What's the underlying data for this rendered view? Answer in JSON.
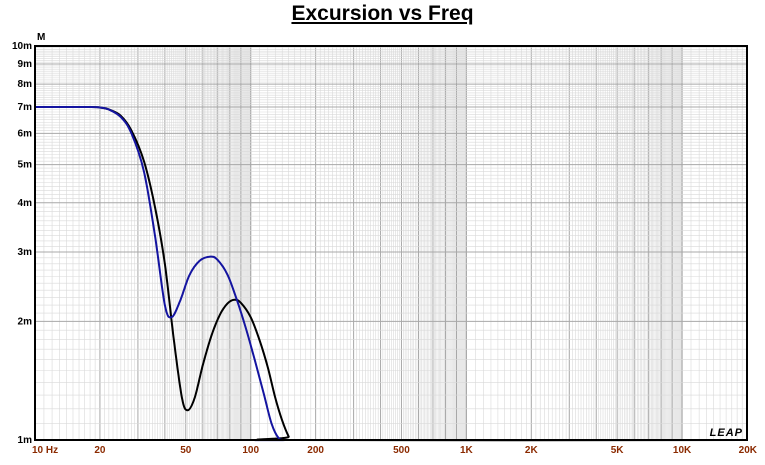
{
  "chart_data": {
    "type": "line",
    "title": "Excursion vs Freq",
    "y_unit": "M",
    "brand": "LEAP",
    "x_scale": "log",
    "y_scale": "log",
    "xlim": [
      10,
      20000
    ],
    "ylim": [
      0.001,
      0.01
    ],
    "grid": true,
    "x_ticks": [
      {
        "value": 10,
        "label": "10  Hz"
      },
      {
        "value": 20,
        "label": "20"
      },
      {
        "value": 50,
        "label": "50"
      },
      {
        "value": 100,
        "label": "100"
      },
      {
        "value": 200,
        "label": "200"
      },
      {
        "value": 500,
        "label": "500"
      },
      {
        "value": 1000,
        "label": "1K"
      },
      {
        "value": 2000,
        "label": "2K"
      },
      {
        "value": 5000,
        "label": "5K"
      },
      {
        "value": 10000,
        "label": "10K"
      },
      {
        "value": 20000,
        "label": "20K"
      }
    ],
    "y_ticks": [
      {
        "value": 0.001,
        "label": "1m"
      },
      {
        "value": 0.002,
        "label": "2m"
      },
      {
        "value": 0.003,
        "label": "3m"
      },
      {
        "value": 0.004,
        "label": "4m"
      },
      {
        "value": 0.005,
        "label": "5m"
      },
      {
        "value": 0.006,
        "label": "6m"
      },
      {
        "value": 0.007,
        "label": "7m"
      },
      {
        "value": 0.008,
        "label": "8m"
      },
      {
        "value": 0.009,
        "label": "9m"
      },
      {
        "value": 0.01,
        "label": "10m"
      }
    ],
    "series": [
      {
        "color": "#000000",
        "x": [
          10,
          14,
          18,
          20,
          22,
          25,
          28,
          32,
          36,
          40,
          44,
          48,
          51,
          55,
          60,
          66,
          72,
          78,
          84,
          90,
          100,
          110,
          120,
          130,
          140,
          150,
          155,
          20000
        ],
        "y": [
          0.007,
          0.007,
          0.007,
          0.00698,
          0.0069,
          0.00665,
          0.0061,
          0.0051,
          0.0039,
          0.0028,
          0.0018,
          0.00128,
          0.00119,
          0.00128,
          0.00155,
          0.00185,
          0.00208,
          0.00222,
          0.00227,
          0.00223,
          0.00205,
          0.00179,
          0.00153,
          0.00128,
          0.00112,
          0.00102,
          0.001,
          0.001
        ]
      },
      {
        "color": "#1414a0",
        "x": [
          10,
          14,
          18,
          20,
          22,
          25,
          28,
          32,
          36,
          40,
          43,
          47,
          52,
          58,
          65,
          70,
          78,
          86,
          95,
          105,
          115,
          125,
          135,
          145,
          152,
          20000
        ],
        "y": [
          0.007,
          0.007,
          0.007,
          0.00698,
          0.0069,
          0.0066,
          0.006,
          0.0048,
          0.0033,
          0.0022,
          0.00205,
          0.00225,
          0.00262,
          0.00285,
          0.00292,
          0.00287,
          0.00263,
          0.00228,
          0.00192,
          0.00158,
          0.00131,
          0.0011,
          0.00101,
          0.00096,
          0.001,
          0.001
        ]
      }
    ]
  }
}
